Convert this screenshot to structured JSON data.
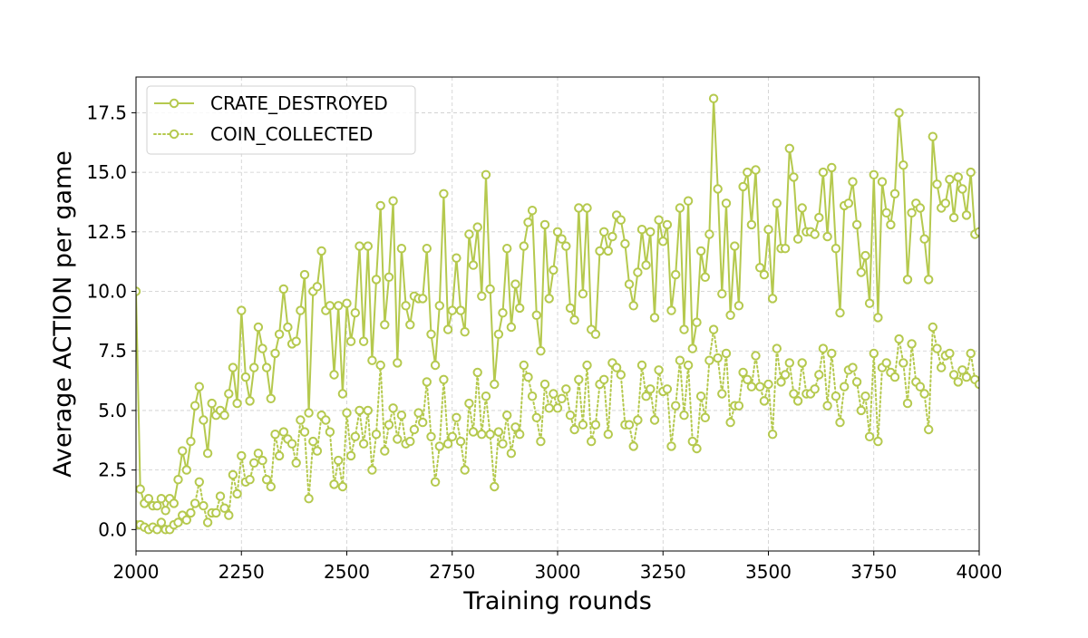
{
  "chart_data": {
    "type": "line",
    "title": "",
    "xlabel": "Training rounds",
    "ylabel": "Average ACTION per game",
    "xlim": [
      2000,
      4000
    ],
    "ylim": [
      -0.9,
      19.0
    ],
    "xticks": [
      2000,
      2250,
      2500,
      2750,
      3000,
      3250,
      3500,
      3750,
      4000
    ],
    "xtick_labels": [
      "2000",
      "2250",
      "2500",
      "2750",
      "3000",
      "3250",
      "3500",
      "3750",
      "4000"
    ],
    "yticks": [
      0,
      2.5,
      5,
      7.5,
      10,
      12.5,
      15,
      17.5
    ],
    "ytick_labels": [
      "0.0",
      "2.5",
      "5.0",
      "7.5",
      "10.0",
      "12.5",
      "15.0",
      "17.5"
    ],
    "grid": true,
    "legend_position": "top-left",
    "color": "#b5c94e",
    "x": [
      2000,
      2010,
      2020,
      2030,
      2040,
      2050,
      2060,
      2070,
      2080,
      2090,
      2100,
      2110,
      2120,
      2130,
      2140,
      2150,
      2160,
      2170,
      2180,
      2190,
      2200,
      2210,
      2220,
      2230,
      2240,
      2250,
      2260,
      2270,
      2280,
      2290,
      2300,
      2310,
      2320,
      2330,
      2340,
      2350,
      2360,
      2370,
      2380,
      2390,
      2400,
      2410,
      2420,
      2430,
      2440,
      2450,
      2460,
      2470,
      2480,
      2490,
      2500,
      2510,
      2520,
      2530,
      2540,
      2550,
      2560,
      2570,
      2580,
      2590,
      2600,
      2610,
      2620,
      2630,
      2640,
      2650,
      2660,
      2670,
      2680,
      2690,
      2700,
      2710,
      2720,
      2730,
      2740,
      2750,
      2760,
      2770,
      2780,
      2790,
      2800,
      2810,
      2820,
      2830,
      2840,
      2850,
      2860,
      2870,
      2880,
      2890,
      2900,
      2910,
      2920,
      2930,
      2940,
      2950,
      2960,
      2970,
      2980,
      2990,
      3000,
      3010,
      3020,
      3030,
      3040,
      3050,
      3060,
      3070,
      3080,
      3090,
      3100,
      3110,
      3120,
      3130,
      3140,
      3150,
      3160,
      3170,
      3180,
      3190,
      3200,
      3210,
      3220,
      3230,
      3240,
      3250,
      3260,
      3270,
      3280,
      3290,
      3300,
      3310,
      3320,
      3330,
      3340,
      3350,
      3360,
      3370,
      3380,
      3390,
      3400,
      3410,
      3420,
      3430,
      3440,
      3450,
      3460,
      3470,
      3480,
      3490,
      3500,
      3510,
      3520,
      3530,
      3540,
      3550,
      3560,
      3570,
      3580,
      3590,
      3600,
      3610,
      3620,
      3630,
      3640,
      3650,
      3660,
      3670,
      3680,
      3690,
      3700,
      3710,
      3720,
      3730,
      3740,
      3750,
      3760,
      3770,
      3780,
      3790,
      3800,
      3810,
      3820,
      3830,
      3840,
      3850,
      3860,
      3870,
      3880,
      3890,
      3900,
      3910,
      3920,
      3930,
      3940,
      3950,
      3960,
      3970,
      3980,
      3990,
      4000
    ],
    "series": [
      {
        "name": "CRATE_DESTROYED",
        "linestyle": "solid",
        "values": [
          10.0,
          1.7,
          1.1,
          1.3,
          1.0,
          1.0,
          1.3,
          0.8,
          1.3,
          1.1,
          2.1,
          3.3,
          2.5,
          3.7,
          5.2,
          6.0,
          4.6,
          3.2,
          5.3,
          4.8,
          5.0,
          4.8,
          5.7,
          6.8,
          5.3,
          9.2,
          6.4,
          5.4,
          6.8,
          8.5,
          7.6,
          6.8,
          5.5,
          7.4,
          8.2,
          10.1,
          8.5,
          7.8,
          7.9,
          9.2,
          10.7,
          4.9,
          10.0,
          10.2,
          11.7,
          9.2,
          9.4,
          6.5,
          9.4,
          5.7,
          9.5,
          7.9,
          9.1,
          11.9,
          7.9,
          11.9,
          7.1,
          10.5,
          13.6,
          8.6,
          10.6,
          13.8,
          7.0,
          11.8,
          9.4,
          8.6,
          9.8,
          9.7,
          9.7,
          11.8,
          8.2,
          6.9,
          9.4,
          14.1,
          8.4,
          9.2,
          11.4,
          9.2,
          8.3,
          12.4,
          11.1,
          12.7,
          9.8,
          14.9,
          10.1,
          6.1,
          8.2,
          9.1,
          11.8,
          8.5,
          10.3,
          9.3,
          11.9,
          12.9,
          13.4,
          9.0,
          7.5,
          12.8,
          9.7,
          10.9,
          12.5,
          12.2,
          11.9,
          9.3,
          8.8,
          13.5,
          9.9,
          13.5,
          8.4,
          8.2,
          11.7,
          12.5,
          11.7,
          12.3,
          13.2,
          13.0,
          12.0,
          10.3,
          9.4,
          10.8,
          12.6,
          11.1,
          12.5,
          8.9,
          13.0,
          12.1,
          12.8,
          9.2,
          10.7,
          13.5,
          8.4,
          13.8,
          7.6,
          8.7,
          11.7,
          10.6,
          12.4,
          18.1,
          14.3,
          9.9,
          13.7,
          9.0,
          11.9,
          9.4,
          14.4,
          15.0,
          12.8,
          15.1,
          11.0,
          10.7,
          12.6,
          9.7,
          13.7,
          11.8,
          11.8,
          16.0,
          14.8,
          12.2,
          13.5,
          12.5,
          12.5,
          12.4,
          13.1,
          15.0,
          12.3,
          15.2,
          11.8,
          9.1,
          13.6,
          13.7,
          14.6,
          12.8,
          10.8,
          11.5,
          9.5,
          14.9,
          8.9,
          14.6,
          13.3,
          12.8,
          14.1,
          17.5,
          15.3,
          10.5,
          13.3,
          13.7,
          13.5,
          12.2,
          10.5,
          16.5,
          14.5,
          13.5,
          13.7,
          14.7,
          13.1,
          14.8,
          14.3,
          13.2,
          15.0,
          12.4,
          12.5
        ]
      },
      {
        "name": "COIN_COLLECTED",
        "linestyle": "dotted",
        "values": [
          0.2,
          0.2,
          0.1,
          0.0,
          0.1,
          0.0,
          0.3,
          0.0,
          0.0,
          0.2,
          0.3,
          0.6,
          0.4,
          0.7,
          1.1,
          2.0,
          1.0,
          0.3,
          0.7,
          0.7,
          1.4,
          0.9,
          0.6,
          2.3,
          1.5,
          3.1,
          2.0,
          2.1,
          2.8,
          3.2,
          2.9,
          2.1,
          1.8,
          4.0,
          3.1,
          4.1,
          3.8,
          3.6,
          2.8,
          4.6,
          4.1,
          1.3,
          3.7,
          3.3,
          4.8,
          4.6,
          4.1,
          1.9,
          2.9,
          1.8,
          4.9,
          3.1,
          3.9,
          5.0,
          3.6,
          5.0,
          2.5,
          4.0,
          6.9,
          3.3,
          4.4,
          5.1,
          3.8,
          4.8,
          3.6,
          3.7,
          4.2,
          4.9,
          4.5,
          6.2,
          3.9,
          2.0,
          3.5,
          6.3,
          3.6,
          3.9,
          4.7,
          3.7,
          2.5,
          5.3,
          4.1,
          6.6,
          4.0,
          5.6,
          4.0,
          1.8,
          4.1,
          3.6,
          4.8,
          3.2,
          4.3,
          4.0,
          6.9,
          6.4,
          5.6,
          4.7,
          3.7,
          6.1,
          5.1,
          5.7,
          5.1,
          5.5,
          5.9,
          4.8,
          4.2,
          6.3,
          4.4,
          6.9,
          3.7,
          4.4,
          6.1,
          6.3,
          4.0,
          7.0,
          6.8,
          6.5,
          4.4,
          4.4,
          3.5,
          4.6,
          6.9,
          5.6,
          5.9,
          4.6,
          6.7,
          5.8,
          5.9,
          3.5,
          5.2,
          7.1,
          4.8,
          6.9,
          3.7,
          3.4,
          5.6,
          4.7,
          7.1,
          8.4,
          7.2,
          5.7,
          7.4,
          4.5,
          5.2,
          5.2,
          6.6,
          6.3,
          6.0,
          7.3,
          6.0,
          5.4,
          6.1,
          4.0,
          7.6,
          6.2,
          6.5,
          7.0,
          5.7,
          5.4,
          7.0,
          5.7,
          5.7,
          5.9,
          6.5,
          7.6,
          5.2,
          7.4,
          5.6,
          4.5,
          6.0,
          6.7,
          6.8,
          6.2,
          5.0,
          5.6,
          3.9,
          7.4,
          3.7,
          6.8,
          7.0,
          6.6,
          6.4,
          8.0,
          7.0,
          5.3,
          7.8,
          6.2,
          6.0,
          5.7,
          4.2,
          8.5,
          7.6,
          6.8,
          7.3,
          7.4,
          6.5,
          6.2,
          6.7,
          6.4,
          7.4,
          6.3,
          6.1
        ]
      }
    ]
  }
}
